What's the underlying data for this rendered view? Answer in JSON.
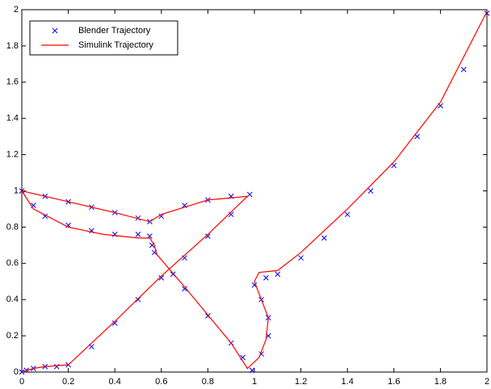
{
  "chart_data": {
    "type": "scatter-line",
    "xlim": [
      0,
      2
    ],
    "ylim": [
      0,
      2
    ],
    "xticks": [
      0,
      0.2,
      0.4,
      0.6,
      0.8,
      1,
      1.2,
      1.4,
      1.6,
      1.8,
      2
    ],
    "yticks": [
      0,
      0.2,
      0.4,
      0.6,
      0.8,
      1,
      1.2,
      1.4,
      1.6,
      1.8,
      2
    ],
    "legend": "upper left",
    "series": [
      {
        "name": "Blender Trajectory",
        "color": "#0000ff",
        "marker": "x",
        "x": [
          0,
          0.02,
          0.05,
          0.1,
          0.15,
          0.2,
          0.3,
          0.4,
          0.5,
          0.6,
          0.7,
          0.8,
          0.9,
          0.98,
          0.9,
          0.8,
          0.7,
          0.6,
          0.55,
          0.5,
          0.4,
          0.3,
          0.2,
          0.1,
          0,
          0.05,
          0.1,
          0.2,
          0.3,
          0.4,
          0.5,
          0.55,
          0.56,
          0.57,
          0.65,
          0.7,
          0.8,
          0.9,
          0.95,
          0.99,
          1.03,
          1.06,
          1.06,
          1.03,
          1.0,
          1.05,
          1.1,
          1.2,
          1.3,
          1.4,
          1.5,
          1.6,
          1.7,
          1.8,
          1.9,
          2.0
        ],
        "values": [
          0,
          0.01,
          0.02,
          0.03,
          0.03,
          0.04,
          0.14,
          0.27,
          0.4,
          0.52,
          0.63,
          0.75,
          0.87,
          0.98,
          0.97,
          0.95,
          0.92,
          0.86,
          0.83,
          0.85,
          0.88,
          0.91,
          0.94,
          0.97,
          1,
          0.92,
          0.86,
          0.81,
          0.78,
          0.76,
          0.76,
          0.75,
          0.7,
          0.66,
          0.54,
          0.46,
          0.31,
          0.16,
          0.08,
          0.01,
          0.1,
          0.2,
          0.3,
          0.4,
          0.48,
          0.52,
          0.54,
          0.63,
          0.74,
          0.87,
          1.0,
          1.14,
          1.3,
          1.47,
          1.67,
          1.98
        ]
      },
      {
        "name": "Simulink Trajectory",
        "color": "#ff0000",
        "marker": "line",
        "x": [
          0,
          0.05,
          0.1,
          0.2,
          0.4,
          0.6,
          0.8,
          0.97,
          0.8,
          0.6,
          0.55,
          0.4,
          0.2,
          0,
          0.05,
          0.2,
          0.35,
          0.5,
          0.55,
          0.57,
          0.58,
          0.7,
          0.9,
          0.97,
          1.02,
          1.05,
          1.06,
          1.03,
          1.0,
          1.02,
          1.1,
          1.2,
          1.4,
          1.6,
          1.8,
          2.0
        ],
        "values": [
          0,
          0.02,
          0.03,
          0.04,
          0.28,
          0.53,
          0.76,
          0.97,
          0.95,
          0.87,
          0.83,
          0.88,
          0.94,
          1,
          0.9,
          0.8,
          0.76,
          0.74,
          0.74,
          0.7,
          0.65,
          0.47,
          0.16,
          0.02,
          0.08,
          0.18,
          0.3,
          0.4,
          0.5,
          0.55,
          0.56,
          0.66,
          0.9,
          1.16,
          1.49,
          1.99
        ]
      }
    ]
  }
}
